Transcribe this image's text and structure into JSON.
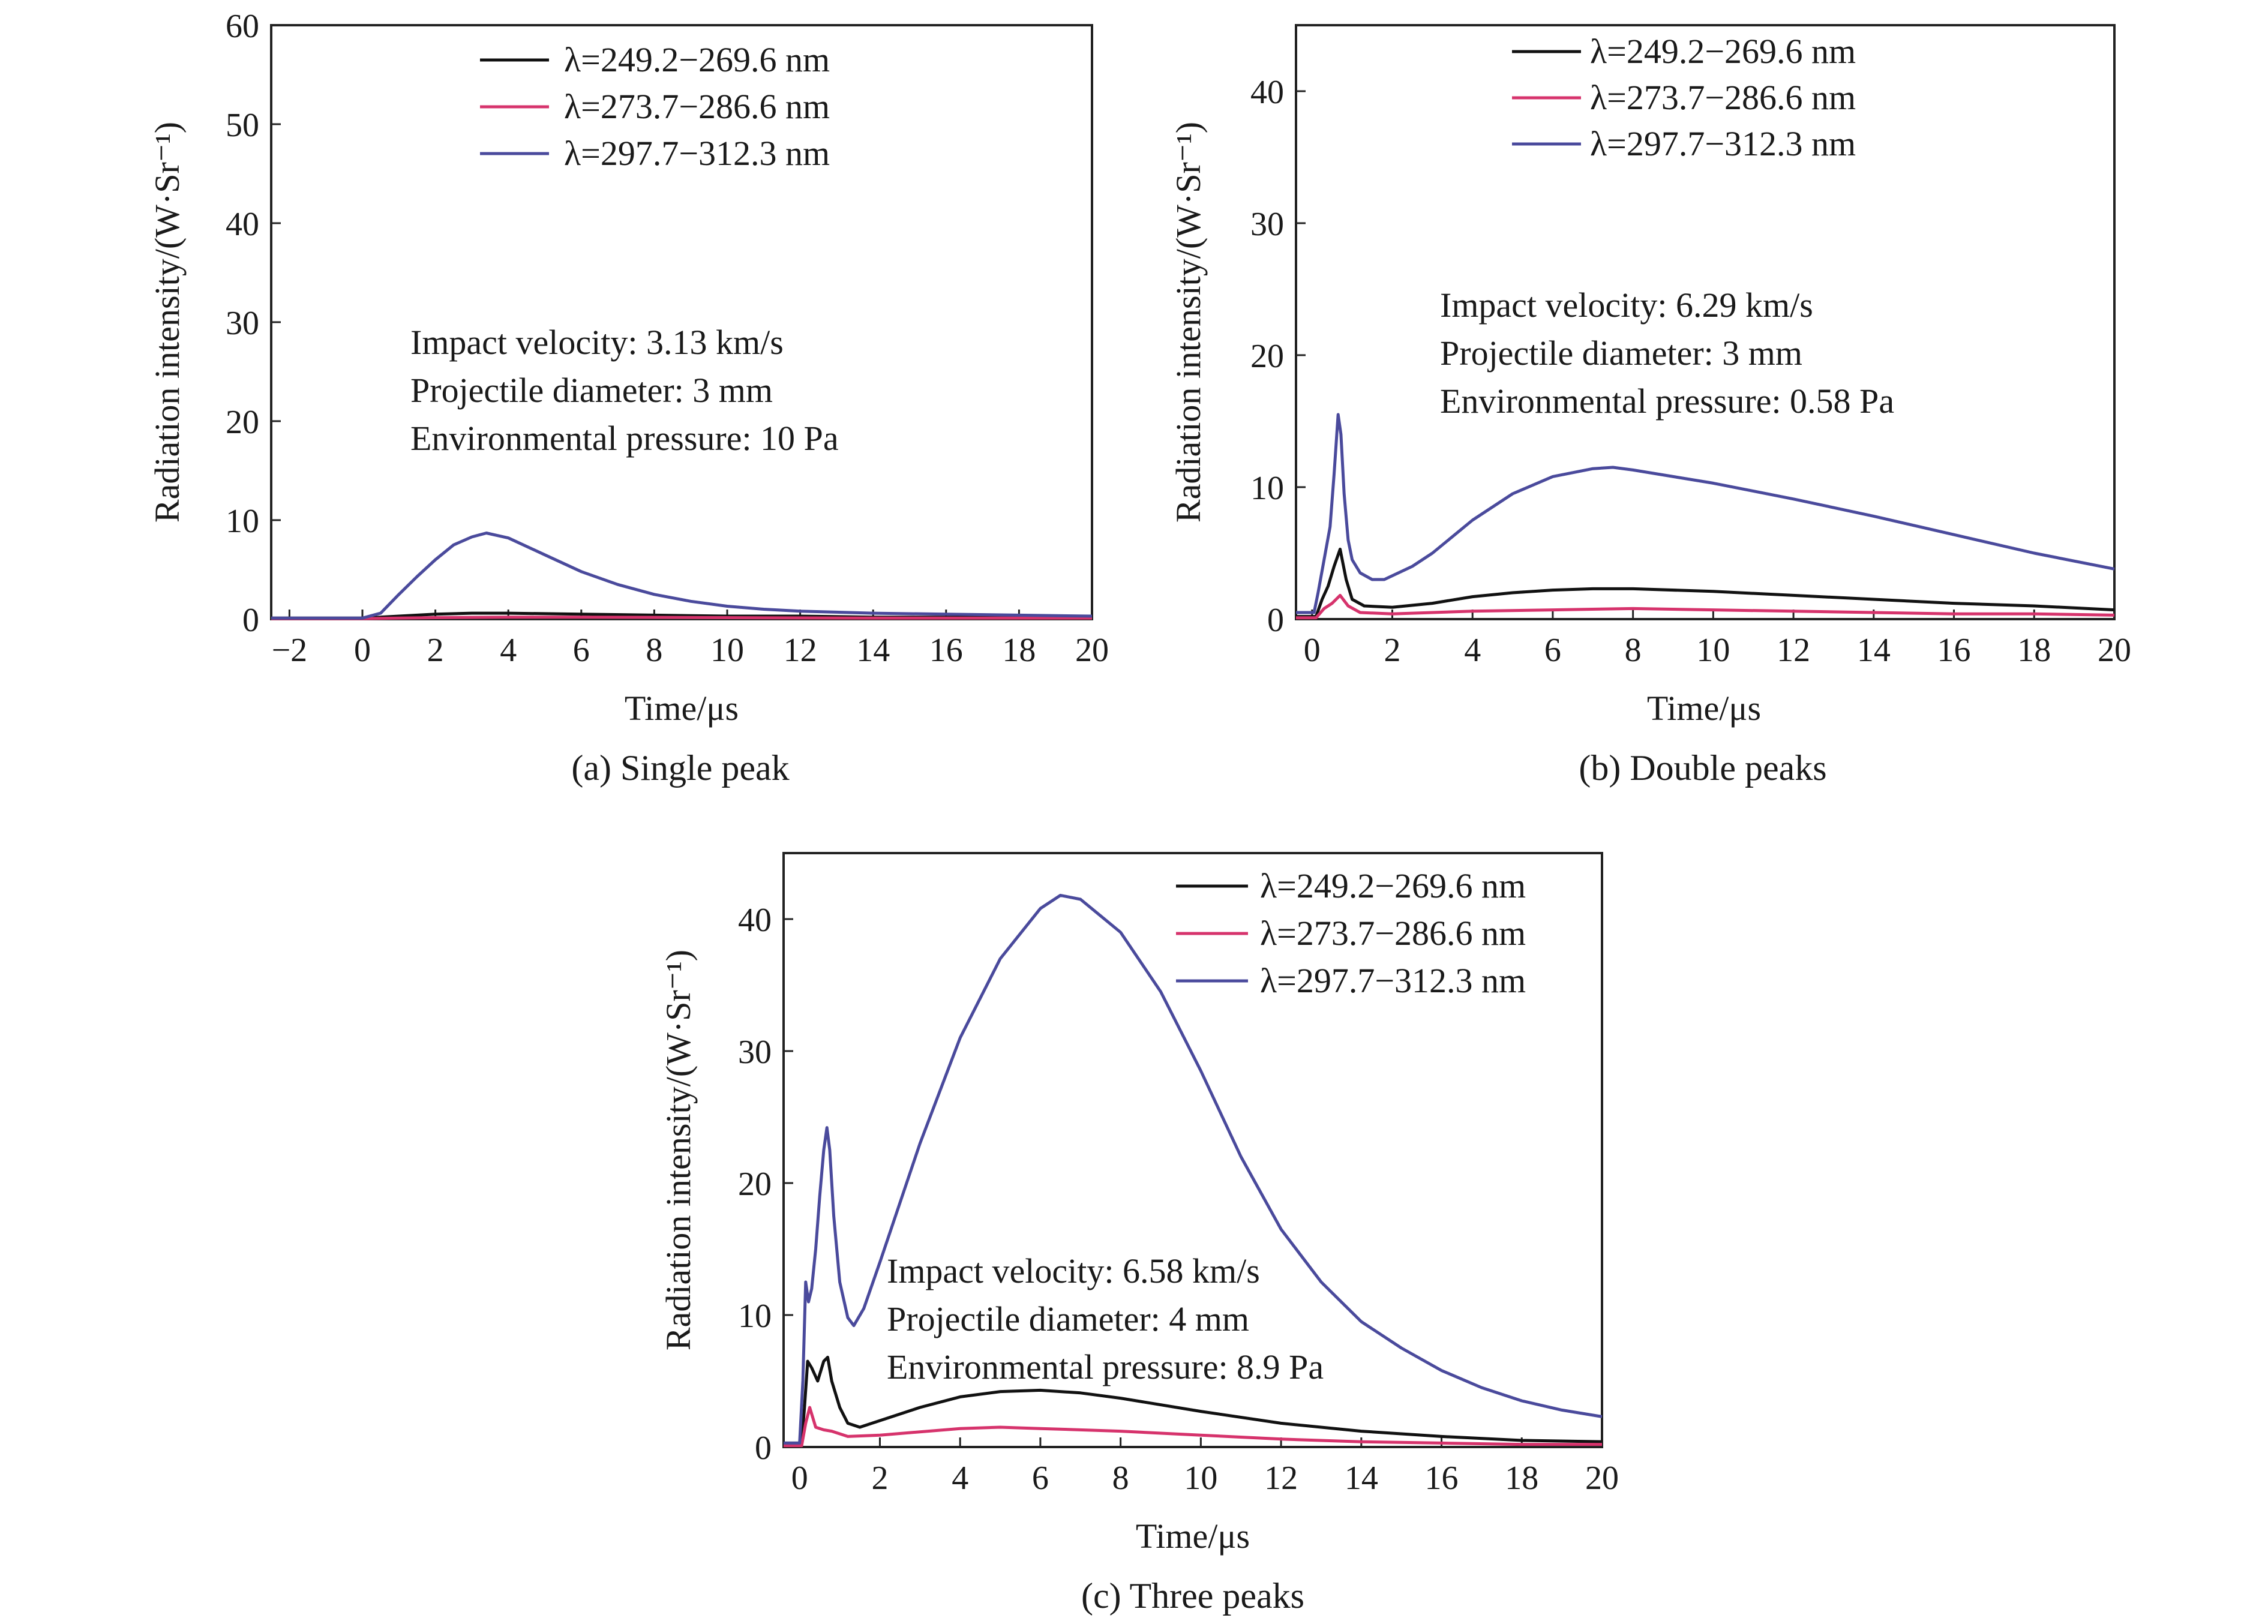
{
  "chart_data": [
    {
      "type": "line",
      "caption": "(a) Single peak",
      "xlabel": "Time/μs",
      "ylabel": "Radiation intensity/(W·Sr⁻¹)",
      "xlim": [
        -2.5,
        20
      ],
      "ylim": [
        0,
        60
      ],
      "xticks": [
        -2,
        0,
        2,
        4,
        6,
        8,
        10,
        12,
        14,
        16,
        18,
        20
      ],
      "yticks": [
        0,
        10,
        20,
        30,
        40,
        50,
        60
      ],
      "xtick_labels": [
        "−2",
        "0",
        "2",
        "4",
        "6",
        "8",
        "10",
        "12",
        "14",
        "16",
        "18",
        "20"
      ],
      "ytick_labels": [
        "0",
        "10",
        "20",
        "30",
        "40",
        "50",
        "60"
      ],
      "legend_position": "top-right",
      "annotations": [
        "Impact velocity: 3.13 km/s",
        "Projectile diameter: 3 mm",
        "Environmental pressure: 10 Pa"
      ],
      "series": [
        {
          "name": "λ=249.2−269.6 nm",
          "color": "#111111",
          "x": [
            -2.5,
            0,
            0.5,
            1,
            2,
            3,
            4,
            6,
            8,
            10,
            12,
            14,
            16,
            18,
            20
          ],
          "y": [
            0.1,
            0.1,
            0.2,
            0.3,
            0.5,
            0.6,
            0.6,
            0.5,
            0.4,
            0.3,
            0.3,
            0.2,
            0.2,
            0.2,
            0.2
          ]
        },
        {
          "name": "λ=273.7−286.6 nm",
          "color": "#d6336c",
          "x": [
            -2.5,
            0,
            1,
            2,
            4,
            6,
            10,
            14,
            20
          ],
          "y": [
            0.05,
            0.05,
            0.1,
            0.15,
            0.2,
            0.2,
            0.15,
            0.1,
            0.1
          ]
        },
        {
          "name": "λ=297.7−312.3 nm",
          "color": "#4a4a9c",
          "x": [
            -2.5,
            0,
            0.5,
            1,
            1.5,
            2,
            2.5,
            3,
            3.4,
            4,
            5,
            6,
            7,
            8,
            9,
            10,
            11,
            12,
            14,
            16,
            18,
            20
          ],
          "y": [
            0.1,
            0.1,
            0.6,
            2.5,
            4.3,
            6.0,
            7.5,
            8.3,
            8.7,
            8.2,
            6.5,
            4.8,
            3.5,
            2.5,
            1.8,
            1.3,
            1.0,
            0.8,
            0.6,
            0.5,
            0.4,
            0.3
          ]
        }
      ]
    },
    {
      "type": "line",
      "caption": "(b) Double peaks",
      "xlabel": "Time/μs",
      "ylabel": "Radiation intensity/(W·Sr⁻¹)",
      "xlim": [
        -0.4,
        20
      ],
      "ylim": [
        0,
        45
      ],
      "xticks": [
        0,
        2,
        4,
        6,
        8,
        10,
        12,
        14,
        16,
        18,
        20
      ],
      "yticks": [
        0,
        10,
        20,
        30,
        40
      ],
      "xtick_labels": [
        "0",
        "2",
        "4",
        "6",
        "8",
        "10",
        "12",
        "14",
        "16",
        "18",
        "20"
      ],
      "ytick_labels": [
        "0",
        "10",
        "20",
        "30",
        "40"
      ],
      "legend_position": "top-right",
      "annotations": [
        "Impact velocity: 6.29 km/s",
        "Projectile diameter: 3 mm",
        "Environmental pressure: 0.58 Pa"
      ],
      "series": [
        {
          "name": "λ=249.2−269.6 nm",
          "color": "#111111",
          "x": [
            -0.4,
            0.1,
            0.25,
            0.4,
            0.55,
            0.7,
            0.85,
            1.0,
            1.3,
            2,
            3,
            4,
            5,
            6,
            7,
            8,
            10,
            12,
            14,
            16,
            18,
            20
          ],
          "y": [
            0.2,
            0.2,
            1.5,
            2.5,
            4.0,
            5.3,
            3.0,
            1.5,
            1.0,
            0.9,
            1.2,
            1.7,
            2.0,
            2.2,
            2.3,
            2.3,
            2.1,
            1.8,
            1.5,
            1.2,
            1.0,
            0.7
          ]
        },
        {
          "name": "λ=273.7−286.6 nm",
          "color": "#d6336c",
          "x": [
            -0.4,
            0.1,
            0.3,
            0.5,
            0.7,
            0.9,
            1.2,
            2,
            4,
            6,
            8,
            10,
            12,
            14,
            16,
            18,
            20
          ],
          "y": [
            0.1,
            0.1,
            0.8,
            1.2,
            1.8,
            1.0,
            0.5,
            0.4,
            0.6,
            0.7,
            0.8,
            0.7,
            0.6,
            0.5,
            0.4,
            0.4,
            0.3
          ]
        },
        {
          "name": "λ=297.7−312.3 nm",
          "color": "#4a4a9c",
          "x": [
            -0.4,
            0.05,
            0.15,
            0.3,
            0.45,
            0.55,
            0.65,
            0.72,
            0.8,
            0.9,
            1.0,
            1.2,
            1.5,
            1.8,
            2.5,
            3.0,
            4,
            5,
            6,
            7,
            7.5,
            8,
            9,
            10,
            11,
            12,
            14,
            16,
            18,
            20
          ],
          "y": [
            0.5,
            0.5,
            2.0,
            4.5,
            7.0,
            11.0,
            15.5,
            14.0,
            9.5,
            6.0,
            4.5,
            3.5,
            3.0,
            3.0,
            4.0,
            5.0,
            7.5,
            9.5,
            10.8,
            11.4,
            11.5,
            11.3,
            10.8,
            10.3,
            9.7,
            9.1,
            7.8,
            6.4,
            5.0,
            3.8
          ]
        }
      ]
    },
    {
      "type": "line",
      "caption": "(c) Three peaks",
      "xlabel": "Time/μs",
      "ylabel": "Radiation intensity/(W·Sr⁻¹)",
      "xlim": [
        -0.4,
        20
      ],
      "ylim": [
        0,
        45
      ],
      "xticks": [
        0,
        2,
        4,
        6,
        8,
        10,
        12,
        14,
        16,
        18,
        20
      ],
      "yticks": [
        0,
        10,
        20,
        30,
        40
      ],
      "xtick_labels": [
        "0",
        "2",
        "4",
        "6",
        "8",
        "10",
        "12",
        "14",
        "16",
        "18",
        "20"
      ],
      "ytick_labels": [
        "0",
        "10",
        "20",
        "30",
        "40"
      ],
      "legend_position": "top-right",
      "annotations": [
        "Impact velocity: 6.58 km/s",
        "Projectile diameter: 4 mm",
        "Environmental pressure: 8.9 Pa"
      ],
      "series": [
        {
          "name": "λ=249.2−269.6 nm",
          "color": "#111111",
          "x": [
            -0.4,
            0.05,
            0.12,
            0.2,
            0.3,
            0.45,
            0.6,
            0.7,
            0.8,
            1.0,
            1.2,
            1.5,
            2,
            3,
            4,
            5,
            6,
            7,
            8,
            10,
            12,
            14,
            16,
            18,
            20
          ],
          "y": [
            0.3,
            0.3,
            3.0,
            6.5,
            6.0,
            5.0,
            6.5,
            6.8,
            5.0,
            3.0,
            1.8,
            1.5,
            2.0,
            3.0,
            3.8,
            4.2,
            4.3,
            4.1,
            3.7,
            2.7,
            1.8,
            1.2,
            0.8,
            0.5,
            0.4
          ]
        },
        {
          "name": "λ=273.7−286.6 nm",
          "color": "#d6336c",
          "x": [
            -0.4,
            0.05,
            0.15,
            0.25,
            0.4,
            0.6,
            0.8,
            1.2,
            2,
            4,
            5,
            6,
            8,
            10,
            12,
            14,
            16,
            18,
            20
          ],
          "y": [
            0.1,
            0.1,
            1.8,
            3.0,
            1.5,
            1.3,
            1.2,
            0.8,
            0.9,
            1.4,
            1.5,
            1.4,
            1.2,
            0.9,
            0.6,
            0.4,
            0.3,
            0.2,
            0.2
          ]
        },
        {
          "name": "λ=297.7−312.3 nm",
          "color": "#4a4a9c",
          "x": [
            -0.4,
            0.0,
            0.08,
            0.15,
            0.22,
            0.3,
            0.4,
            0.5,
            0.6,
            0.68,
            0.75,
            0.85,
            1.0,
            1.2,
            1.35,
            1.6,
            2,
            3,
            4,
            5,
            6,
            6.5,
            7,
            8,
            9,
            10,
            11,
            12,
            13,
            14,
            15,
            16,
            17,
            18,
            19,
            20
          ],
          "y": [
            0.3,
            0.3,
            5.0,
            12.5,
            11.0,
            12.0,
            15.0,
            19.0,
            22.5,
            24.2,
            22.5,
            17.5,
            12.5,
            9.8,
            9.2,
            10.5,
            14.0,
            23.0,
            31.0,
            37.0,
            40.8,
            41.8,
            41.5,
            39.0,
            34.5,
            28.5,
            22.0,
            16.5,
            12.5,
            9.5,
            7.5,
            5.8,
            4.5,
            3.5,
            2.8,
            2.3
          ]
        }
      ]
    }
  ]
}
